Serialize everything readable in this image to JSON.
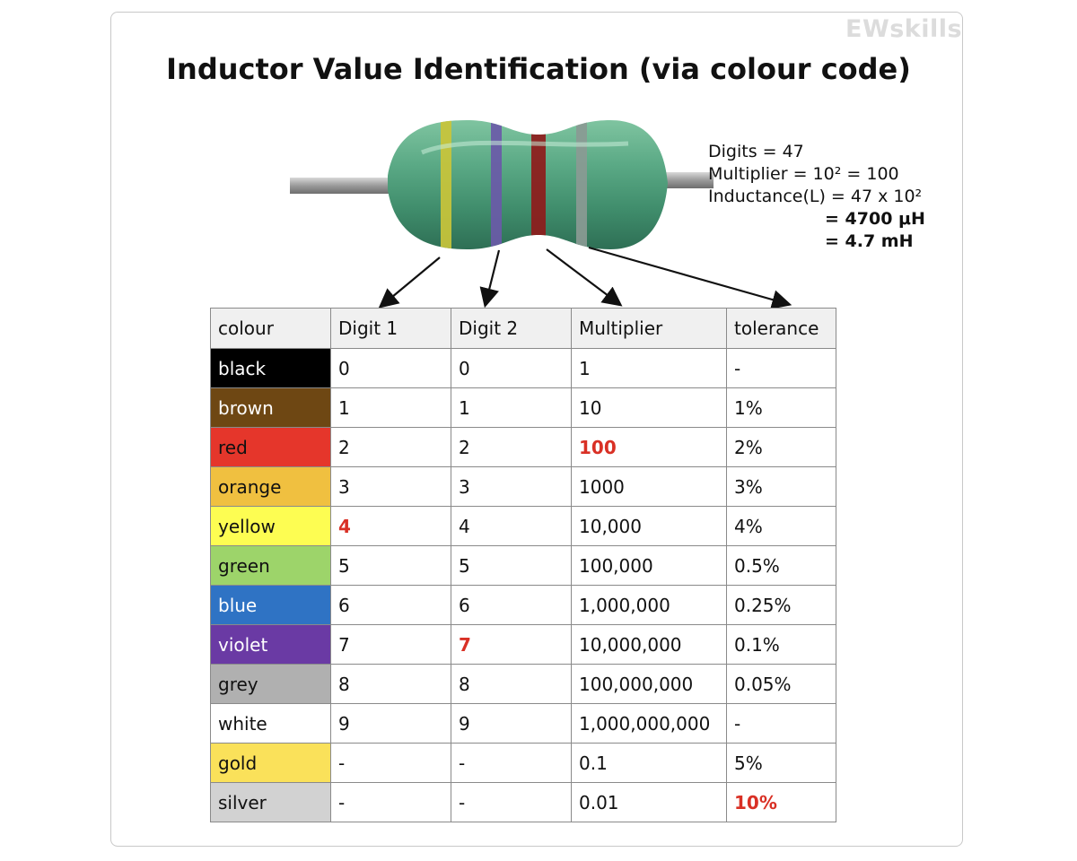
{
  "brand": "EWskills",
  "title": "Inductor Value Identification (via colour code)",
  "calculation": {
    "digits": "Digits = 47",
    "multiplier": "Multiplier = 10² = 100",
    "inductance": "Inductance(L) = 47 x 10²",
    "result_uh": "= 4700 μH",
    "result_mh": "= 4.7 mH"
  },
  "inductor_bands": [
    {
      "name": "yellow",
      "color": "#c9c43a"
    },
    {
      "name": "violet",
      "color": "#6a5aa8"
    },
    {
      "name": "red",
      "color": "#8e1b1b"
    },
    {
      "name": "silver",
      "color": "#8a9a94"
    }
  ],
  "table": {
    "headers": [
      "colour",
      "Digit 1",
      "Digit 2",
      "Multiplier",
      "tolerance"
    ],
    "rows": [
      {
        "colour": "black",
        "bg": "#000000",
        "fg": "#ffffff",
        "digit1": "0",
        "digit2": "0",
        "multiplier": "1",
        "tolerance": "-"
      },
      {
        "colour": "brown",
        "bg": "#6e4713",
        "fg": "#ffffff",
        "digit1": "1",
        "digit2": "1",
        "multiplier": "10",
        "tolerance": "1%"
      },
      {
        "colour": "red",
        "bg": "#e5362b",
        "fg": "#111111",
        "digit1": "2",
        "digit2": "2",
        "multiplier": "100",
        "tolerance": "2%",
        "hl_multiplier": true
      },
      {
        "colour": "orange",
        "bg": "#f0c040",
        "fg": "#111111",
        "digit1": "3",
        "digit2": "3",
        "multiplier": "1000",
        "tolerance": "3%"
      },
      {
        "colour": "yellow",
        "bg": "#fdfd52",
        "fg": "#111111",
        "digit1": "4",
        "digit2": "4",
        "multiplier": "10,000",
        "tolerance": "4%",
        "hl_digit1": true
      },
      {
        "colour": "green",
        "bg": "#9dd46a",
        "fg": "#111111",
        "digit1": "5",
        "digit2": "5",
        "multiplier": "100,000",
        "tolerance": "0.5%"
      },
      {
        "colour": "blue",
        "bg": "#2f73c4",
        "fg": "#ffffff",
        "digit1": "6",
        "digit2": "6",
        "multiplier": "1,000,000",
        "tolerance": "0.25%"
      },
      {
        "colour": "violet",
        "bg": "#6a3aa4",
        "fg": "#ffffff",
        "digit1": "7",
        "digit2": "7",
        "multiplier": "10,000,000",
        "tolerance": "0.1%",
        "hl_digit2": true
      },
      {
        "colour": "grey",
        "bg": "#b0b0b0",
        "fg": "#111111",
        "digit1": "8",
        "digit2": "8",
        "multiplier": "100,000,000",
        "tolerance": "0.05%"
      },
      {
        "colour": "white",
        "bg": "#ffffff",
        "fg": "#111111",
        "digit1": "9",
        "digit2": "9",
        "multiplier": "1,000,000,000",
        "tolerance": "-"
      },
      {
        "colour": "gold",
        "bg": "#fae15a",
        "fg": "#111111",
        "digit1": "-",
        "digit2": "-",
        "multiplier": "0.1",
        "tolerance": "5%"
      },
      {
        "colour": "silver",
        "bg": "#d2d2d2",
        "fg": "#111111",
        "digit1": "-",
        "digit2": "-",
        "multiplier": "0.01",
        "tolerance": "10%",
        "hl_tolerance": true
      }
    ]
  }
}
